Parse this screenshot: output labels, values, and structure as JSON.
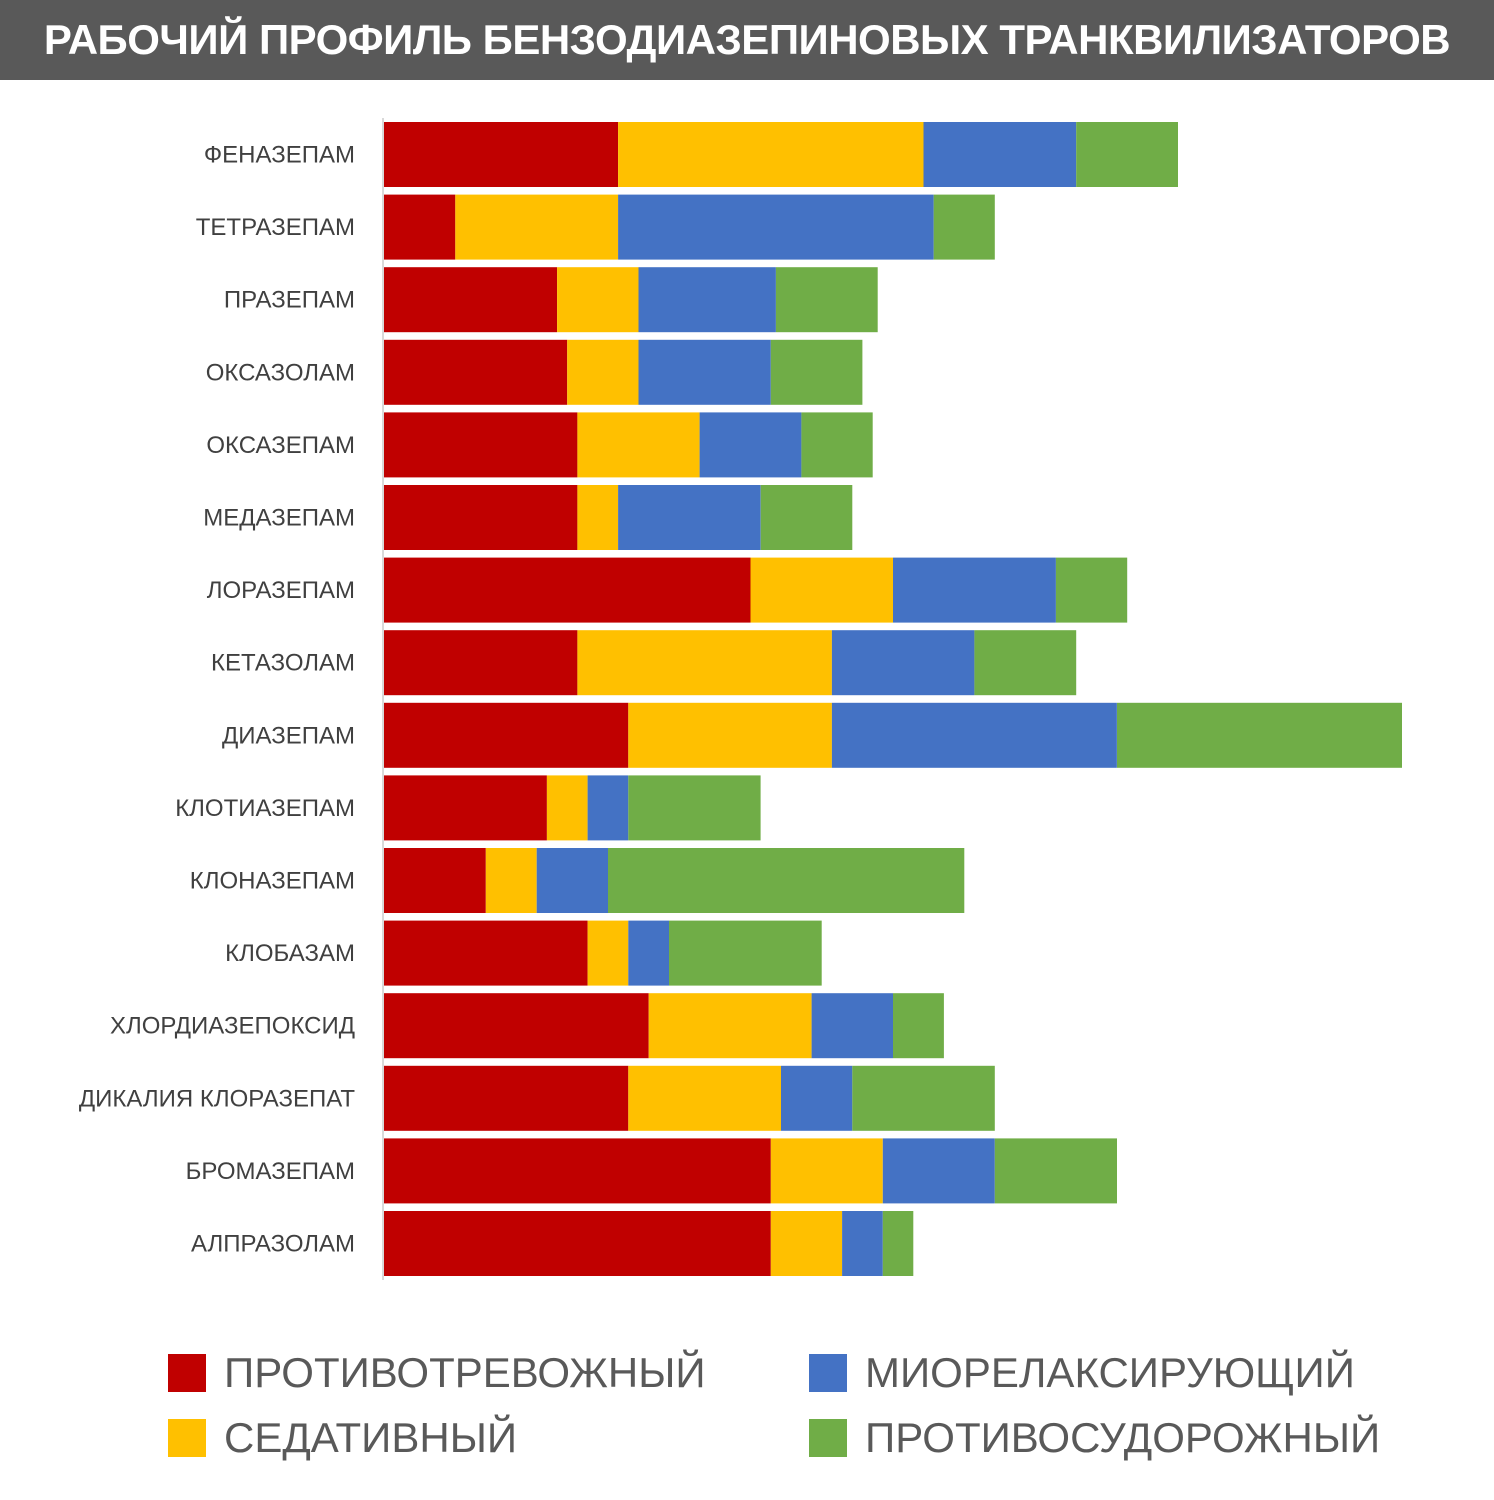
{
  "header": {
    "title": "РАБОЧИЙ ПРОФИЛЬ БЕНЗОДИАЗЕПИНОВЫХ ТРАНКВИЛИЗАТОРОВ"
  },
  "colors": {
    "title_background": "#595959",
    "anxiolytic": "#C00000",
    "sedative": "#FFC000",
    "muscle_relaxant": "#4472C4",
    "anticonvulsant": "#70AD47"
  },
  "legend": {
    "items": [
      {
        "label": "ПРОТИВОТРЕВОЖНЫЙ",
        "color": "#C00000"
      },
      {
        "label": "СЕДАТИВНЫЙ",
        "color": "#FFC000"
      },
      {
        "label": "МИОРЕЛАКСИРУЮЩИЙ",
        "color": "#4472C4"
      },
      {
        "label": "ПРОТИВОСУДОРОЖНЫЙ",
        "color": "#70AD47"
      }
    ]
  },
  "chart_data": {
    "type": "bar",
    "orientation": "horizontal",
    "stacked": true,
    "title": "РАБОЧИЙ ПРОФИЛЬ БЕНЗОДИАЗЕПИНОВЫХ ТРАНКВИЛИЗАТОРОВ",
    "xlim": [
      0,
      10
    ],
    "grid": false,
    "legend_position": "bottom",
    "categories": [
      "ФЕНАЗЕПАМ",
      "ТЕТРАЗЕПАМ",
      "ПРАЗЕПАМ",
      "ОКСАЗОЛАМ",
      "ОКСАЗЕПАМ",
      "МЕДАЗЕПАМ",
      "ЛОРАЗЕПАМ",
      "КЕТАЗОЛАМ",
      "ДИАЗЕПАМ",
      "КЛОТИАЗЕПАМ",
      "КЛОНАЗЕПАМ",
      "КЛОБАЗАМ",
      "ХЛОРДИАЗЕПОКСИД",
      "ДИКАЛИЯ КЛОРАЗЕПАТ",
      "БРОМАЗЕПАМ",
      "АЛПРАЗОЛАМ"
    ],
    "series": [
      {
        "name": "ПРОТИВОТРЕВОЖНЫЙ",
        "color": "#C00000",
        "values": [
          2.3,
          0.7,
          1.7,
          1.8,
          1.9,
          1.9,
          3.6,
          1.9,
          2.4,
          1.6,
          1.0,
          2.0,
          2.6,
          2.4,
          3.8,
          3.8
        ]
      },
      {
        "name": "СЕДАТИВНЫЙ",
        "color": "#FFC000",
        "values": [
          3.0,
          1.6,
          0.8,
          0.7,
          1.2,
          0.4,
          1.4,
          2.5,
          2.0,
          0.4,
          0.5,
          0.4,
          1.6,
          1.5,
          1.1,
          0.7
        ]
      },
      {
        "name": "МИОРЕЛАКСИРУЮЩИЙ",
        "color": "#4472C4",
        "values": [
          1.5,
          3.1,
          1.35,
          1.3,
          1.0,
          1.4,
          1.6,
          1.4,
          2.8,
          0.4,
          0.7,
          0.4,
          0.8,
          0.7,
          1.1,
          0.4
        ]
      },
      {
        "name": "ПРОТИВОСУДОРОЖНЫЙ",
        "color": "#70AD47",
        "values": [
          1.0,
          0.6,
          1.0,
          0.9,
          0.7,
          0.9,
          0.7,
          1.0,
          2.8,
          1.3,
          3.5,
          1.5,
          0.5,
          1.4,
          1.2,
          0.3
        ]
      }
    ]
  }
}
